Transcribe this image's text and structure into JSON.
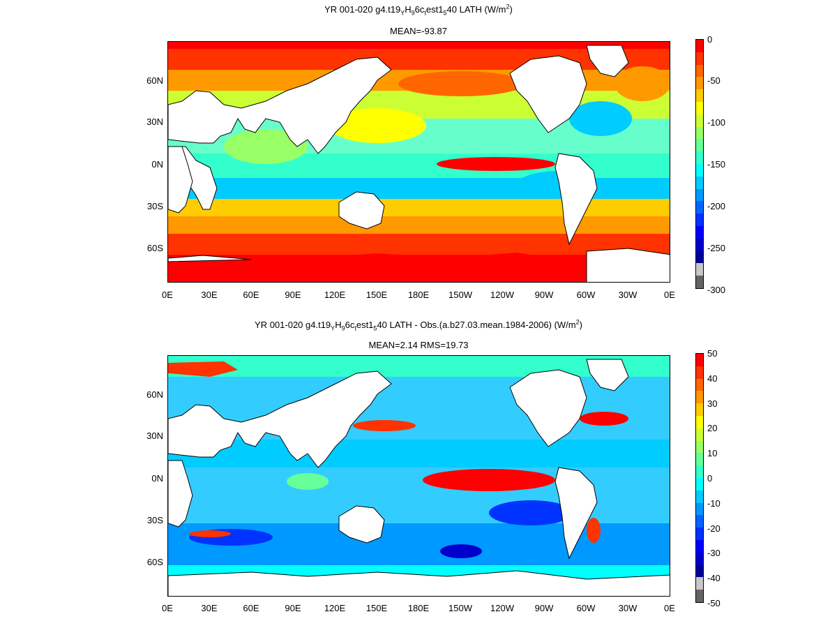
{
  "panels": [
    {
      "title_parts": [
        "YR 001-020 g4.t19",
        "Y",
        "H",
        "9",
        "6c",
        "t",
        "est1",
        "5",
        "40  LATH (W/m",
        "2",
        ")"
      ],
      "subtitle": "MEAN=-93.87",
      "lat_labels": [
        "60N",
        "30N",
        "0N",
        "30S",
        "60S"
      ],
      "lon_labels": [
        "0E",
        "30E",
        "60E",
        "90E",
        "120E",
        "150E",
        "180E",
        "150W",
        "120W",
        "90W",
        "60W",
        "30W",
        "0E"
      ],
      "colorbar_labels": [
        "0",
        "-50",
        "-100",
        "-150",
        "-200",
        "-250",
        "-300"
      ],
      "colorbar_colors": [
        "#ff0000",
        "#ff3300",
        "#ff6600",
        "#ff9900",
        "#ffcc00",
        "#ffff00",
        "#ccff33",
        "#99ff66",
        "#66ff99",
        "#33ffcc",
        "#00ffff",
        "#00ccff",
        "#0099ff",
        "#0066ff",
        "#0033ff",
        "#0000ff",
        "#0000cc",
        "#000099",
        "#c8c8c8",
        "#646464"
      ]
    },
    {
      "title_parts": [
        "YR 001-020 g4.t19",
        "Y",
        "H",
        "9",
        "6c",
        "t",
        "est1",
        "5",
        "40 LATH - Obs.(a.b27.03.mean.1984-2006) (W/m",
        "2",
        ")"
      ],
      "subtitle": "MEAN=2.14 RMS=19.73",
      "lat_labels": [
        "60N",
        "30N",
        "0N",
        "30S",
        "60S"
      ],
      "lon_labels": [
        "0E",
        "30E",
        "60E",
        "90E",
        "120E",
        "150E",
        "180E",
        "150W",
        "120W",
        "90W",
        "60W",
        "30W",
        "0E"
      ],
      "colorbar_labels": [
        "50",
        "40",
        "30",
        "20",
        "10",
        "0",
        "-10",
        "-20",
        "-30",
        "-40",
        "-50"
      ],
      "colorbar_colors": [
        "#ff0000",
        "#ff3300",
        "#ff6600",
        "#ff9900",
        "#ffcc00",
        "#ffff00",
        "#ccff33",
        "#99ff66",
        "#66ff99",
        "#33ffcc",
        "#00ffff",
        "#00ccff",
        "#0099ff",
        "#0066ff",
        "#0033ff",
        "#0000ff",
        "#0000cc",
        "#000099",
        "#c8c8c8",
        "#646464"
      ]
    }
  ],
  "chart_data": [
    {
      "type": "heatmap",
      "title": "YR 001-020 g4.t19YH96ctest1540  LATH (W/m2)",
      "subtitle": "MEAN=-93.87",
      "x_range": [
        "0E",
        "0E"
      ],
      "y_ticks": [
        "60N",
        "30N",
        "0N",
        "30S",
        "60S"
      ],
      "colorbar_range": [
        -300,
        0
      ],
      "colorbar_ticks": [
        0,
        -50,
        -100,
        -150,
        -200,
        -250,
        -300
      ]
    },
    {
      "type": "heatmap",
      "title": "YR 001-020 g4.t19YH96ctest1540 LATH - Obs.(a.b27.03.mean.1984-2006) (W/m2)",
      "subtitle": "MEAN=2.14 RMS=19.73",
      "x_range": [
        "0E",
        "0E"
      ],
      "y_ticks": [
        "60N",
        "30N",
        "0N",
        "30S",
        "60S"
      ],
      "colorbar_range": [
        -50,
        50
      ],
      "colorbar_ticks": [
        50,
        40,
        30,
        20,
        10,
        0,
        -10,
        -20,
        -30,
        -40,
        -50
      ]
    }
  ]
}
